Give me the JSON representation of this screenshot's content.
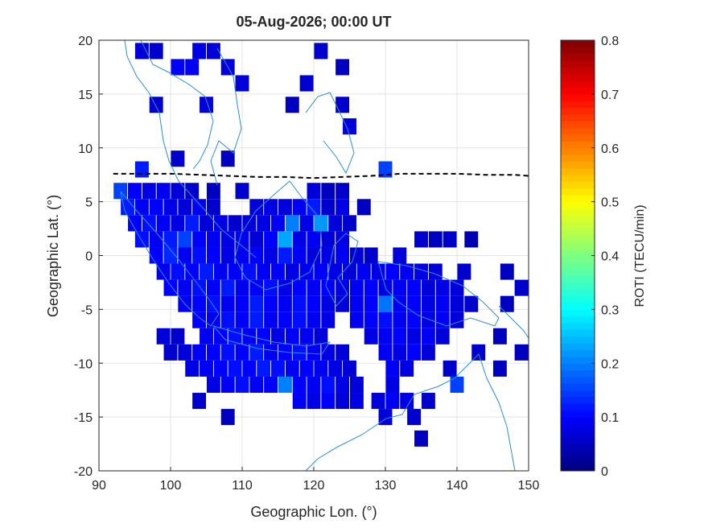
{
  "chart_data": {
    "type": "heatmap",
    "title": "05-Aug-2026; 00:00 UT",
    "x_label": "Geographic Lon. (°)",
    "y_label": "Geographic Lat. (°)",
    "colorbar_label": "ROTI (TECU/min)",
    "xlim": [
      90,
      150
    ],
    "ylim": [
      -20,
      20
    ],
    "xticks": [
      90,
      100,
      110,
      120,
      130,
      140,
      150
    ],
    "yticks": [
      -20,
      -15,
      -10,
      -5,
      0,
      5,
      10,
      15,
      20
    ],
    "clim": [
      0,
      0.8
    ],
    "cticks": [
      0,
      0.1,
      0.2,
      0.3,
      0.4,
      0.5,
      0.6,
      0.7,
      0.8
    ],
    "grid": true,
    "colormap": "jet",
    "dip_equator": {
      "color": "#000000",
      "lon": [
        92,
        96,
        100,
        104,
        108,
        112,
        116,
        120,
        124,
        128,
        132,
        136,
        140,
        144,
        148,
        150
      ],
      "lat": [
        7.6,
        7.6,
        7.6,
        7.5,
        7.4,
        7.3,
        7.3,
        7.2,
        7.3,
        7.4,
        7.6,
        7.6,
        7.6,
        7.5,
        7.5,
        7.4
      ]
    },
    "rows": [
      {
        "lat": 19,
        "lon": [
          96,
          98,
          104,
          106,
          121
        ],
        "values": [
          0.07,
          0.06,
          0.08,
          0.07,
          0.06
        ]
      },
      {
        "lat": 17.5,
        "lon": [
          101,
          103,
          108,
          124
        ],
        "values": [
          0.1,
          0.09,
          0.07,
          0.05
        ]
      },
      {
        "lat": 16,
        "lon": [
          110,
          119
        ],
        "values": [
          0.07,
          0.06
        ]
      },
      {
        "lat": 14,
        "lon": [
          98,
          105,
          117,
          124
        ],
        "values": [
          0.06,
          0.07,
          0.05,
          0.06
        ]
      },
      {
        "lat": 12,
        "lon": [
          125
        ],
        "values": [
          0.07
        ]
      },
      {
        "lat": 9,
        "lon": [
          101,
          108
        ],
        "values": [
          0.06,
          0.05
        ]
      },
      {
        "lat": 8,
        "lon": [
          96,
          130
        ],
        "values": [
          0.12,
          0.15
        ]
      },
      {
        "lat": 6,
        "lon": [
          93,
          95,
          97,
          99,
          101,
          103,
          106,
          110,
          120,
          122,
          124
        ],
        "values": [
          0.15,
          0.1,
          0.08,
          0.09,
          0.07,
          0.06,
          0.05,
          0.06,
          0.07,
          0.05,
          0.06
        ]
      },
      {
        "lat": 4.5,
        "lon": [
          94,
          96,
          98,
          100,
          102,
          104,
          106,
          112,
          114,
          116,
          118,
          120,
          122,
          124,
          127
        ],
        "values": [
          0.12,
          0.09,
          0.1,
          0.08,
          0.07,
          0.09,
          0.06,
          0.07,
          0.08,
          0.07,
          0.09,
          0.12,
          0.06,
          0.08,
          0.05
        ]
      },
      {
        "lat": 3,
        "lon": [
          95,
          97,
          99,
          101,
          103,
          105,
          107,
          109,
          111,
          113,
          115,
          117,
          119,
          121,
          123,
          125
        ],
        "values": [
          0.1,
          0.11,
          0.09,
          0.08,
          0.12,
          0.07,
          0.08,
          0.06,
          0.07,
          0.08,
          0.09,
          0.2,
          0.08,
          0.22,
          0.07,
          0.06
        ]
      },
      {
        "lat": 1.5,
        "lon": [
          96,
          98,
          100,
          102,
          104,
          106,
          108,
          110,
          112,
          114,
          116,
          118,
          120,
          122,
          124,
          135,
          137,
          139,
          142
        ],
        "values": [
          0.11,
          0.09,
          0.12,
          0.15,
          0.1,
          0.09,
          0.08,
          0.09,
          0.07,
          0.1,
          0.23,
          0.08,
          0.09,
          0.07,
          0.08,
          0.06,
          0.05,
          0.06,
          0.04
        ]
      },
      {
        "lat": 0,
        "lon": [
          98,
          100,
          102,
          104,
          106,
          108,
          110,
          112,
          114,
          116,
          118,
          120,
          122,
          124,
          126,
          128,
          132
        ],
        "values": [
          0.1,
          0.13,
          0.09,
          0.11,
          0.1,
          0.08,
          0.09,
          0.1,
          0.08,
          0.12,
          0.09,
          0.07,
          0.08,
          0.09,
          0.07,
          0.06,
          0.07
        ]
      },
      {
        "lat": -1.5,
        "lon": [
          99,
          101,
          103,
          105,
          107,
          109,
          111,
          113,
          115,
          117,
          119,
          121,
          123,
          125,
          127,
          129,
          131,
          133,
          135,
          137,
          141,
          147
        ],
        "values": [
          0.09,
          0.11,
          0.1,
          0.12,
          0.09,
          0.1,
          0.11,
          0.09,
          0.1,
          0.08,
          0.09,
          0.1,
          0.08,
          0.07,
          0.09,
          0.08,
          0.1,
          0.09,
          0.08,
          0.07,
          0.06,
          0.05
        ]
      },
      {
        "lat": -3,
        "lon": [
          100,
          102,
          104,
          106,
          108,
          110,
          112,
          114,
          116,
          118,
          120,
          122,
          124,
          126,
          128,
          130,
          132,
          134,
          136,
          138,
          140,
          149
        ],
        "values": [
          0.1,
          0.09,
          0.11,
          0.1,
          0.12,
          0.09,
          0.1,
          0.11,
          0.08,
          0.1,
          0.09,
          0.1,
          0.08,
          0.09,
          0.1,
          0.08,
          0.09,
          0.1,
          0.07,
          0.08,
          0.07,
          0.06
        ]
      },
      {
        "lat": -4.5,
        "lon": [
          102,
          104,
          106,
          108,
          110,
          112,
          114,
          116,
          118,
          120,
          122,
          124,
          126,
          128,
          130,
          132,
          134,
          136,
          138,
          140,
          142,
          147
        ],
        "values": [
          0.09,
          0.1,
          0.11,
          0.09,
          0.1,
          0.12,
          0.1,
          0.09,
          0.11,
          0.1,
          0.08,
          0.07,
          0.09,
          0.1,
          0.19,
          0.09,
          0.1,
          0.08,
          0.09,
          0.07,
          0.06,
          0.05
        ]
      },
      {
        "lat": -6,
        "lon": [
          104,
          106,
          108,
          110,
          112,
          114,
          116,
          118,
          120,
          122,
          126,
          128,
          130,
          132,
          134,
          136,
          138,
          140
        ],
        "values": [
          0.1,
          0.09,
          0.11,
          0.1,
          0.12,
          0.09,
          0.1,
          0.11,
          0.09,
          0.08,
          0.09,
          0.1,
          0.11,
          0.09,
          0.1,
          0.08,
          0.09,
          0.07
        ]
      },
      {
        "lat": -7.5,
        "lon": [
          99,
          101,
          105,
          107,
          109,
          111,
          113,
          115,
          117,
          119,
          121,
          128,
          130,
          132,
          134,
          136,
          138,
          146
        ],
        "values": [
          0.07,
          0.06,
          0.09,
          0.1,
          0.11,
          0.09,
          0.1,
          0.08,
          0.1,
          0.09,
          0.07,
          0.08,
          0.09,
          0.1,
          0.08,
          0.09,
          0.07,
          0.05
        ]
      },
      {
        "lat": -9,
        "lon": [
          100,
          102,
          104,
          106,
          108,
          110,
          112,
          114,
          116,
          118,
          120,
          122,
          124,
          130,
          132,
          134,
          136,
          143,
          149
        ],
        "values": [
          0.06,
          0.07,
          0.09,
          0.1,
          0.11,
          0.1,
          0.12,
          0.09,
          0.1,
          0.11,
          0.09,
          0.08,
          0.07,
          0.09,
          0.08,
          0.1,
          0.07,
          0.06,
          0.05
        ]
      },
      {
        "lat": -10.5,
        "lon": [
          103,
          105,
          107,
          109,
          111,
          113,
          115,
          117,
          119,
          121,
          123,
          125,
          131,
          133,
          139,
          146
        ],
        "values": [
          0.08,
          0.09,
          0.1,
          0.11,
          0.1,
          0.12,
          0.11,
          0.09,
          0.1,
          0.09,
          0.08,
          0.07,
          0.09,
          0.08,
          0.06,
          0.05
        ]
      },
      {
        "lat": -12,
        "lon": [
          106,
          108,
          110,
          112,
          114,
          116,
          118,
          120,
          122,
          124,
          126,
          131,
          140
        ],
        "values": [
          0.08,
          0.1,
          0.11,
          0.09,
          0.1,
          0.2,
          0.1,
          0.09,
          0.11,
          0.08,
          0.07,
          0.08,
          0.15
        ]
      },
      {
        "lat": -13.5,
        "lon": [
          104,
          118,
          120,
          122,
          124,
          126,
          129,
          131,
          133,
          136
        ],
        "values": [
          0.06,
          0.09,
          0.08,
          0.1,
          0.07,
          0.08,
          0.07,
          0.09,
          0.08,
          0.06
        ]
      },
      {
        "lat": -15,
        "lon": [
          108,
          130,
          134
        ],
        "values": [
          0.05,
          0.07,
          0.06
        ]
      },
      {
        "lat": -17,
        "lon": [
          135
        ],
        "values": [
          0.05
        ]
      }
    ]
  }
}
